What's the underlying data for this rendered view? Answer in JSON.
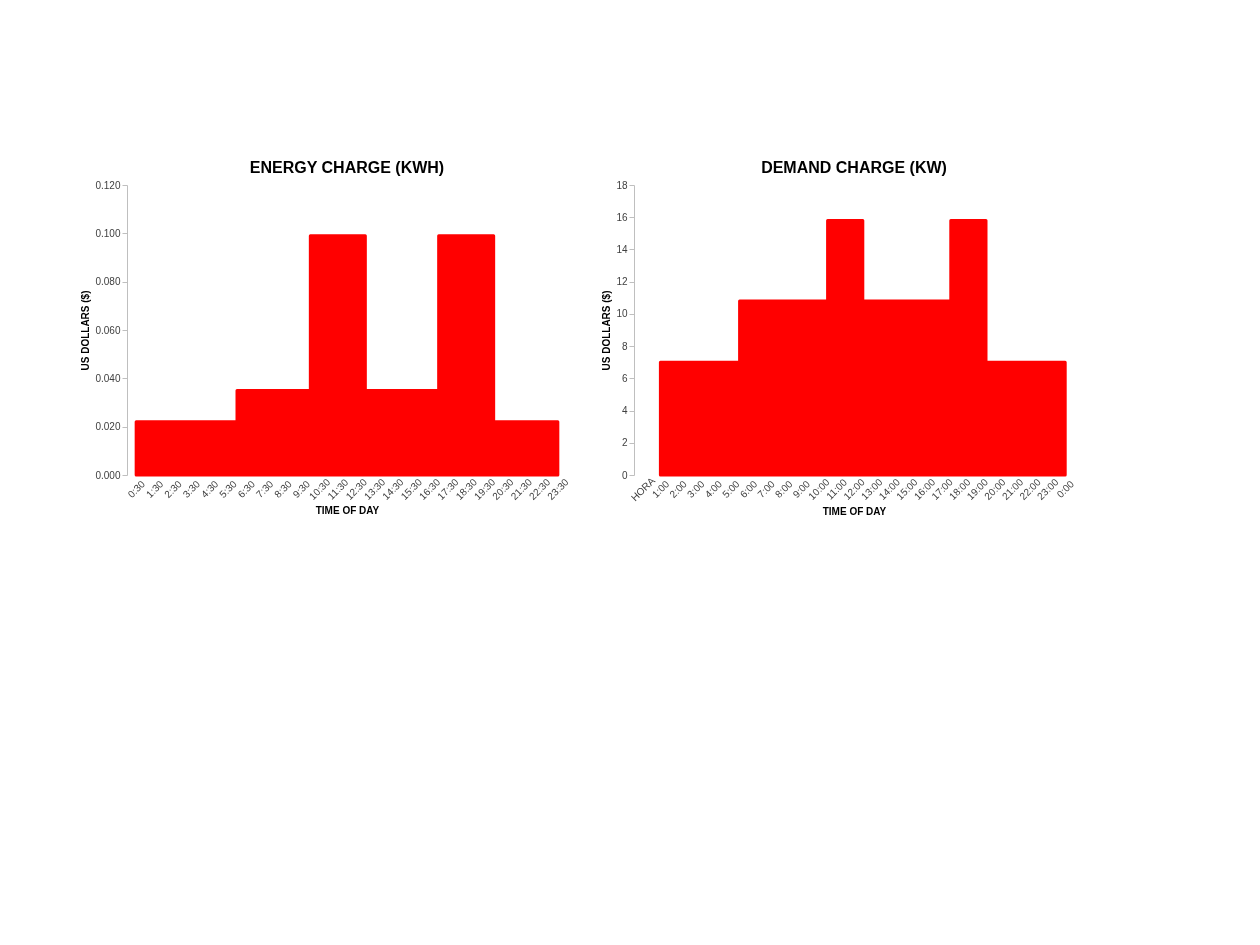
{
  "chart_data": [
    {
      "type": "area",
      "title": "ENERGY CHARGE (KWH)",
      "xlabel": "TIME OF DAY",
      "ylabel": "US DOLLARS ($)",
      "categories": [
        "0:30",
        "1:30",
        "2:30",
        "3:30",
        "4:30",
        "5:30",
        "6:30",
        "7:30",
        "8:30",
        "9:30",
        "10:30",
        "11:30",
        "12:30",
        "13:30",
        "14:30",
        "15:30",
        "16:30",
        "17:30",
        "18:30",
        "19:30",
        "20:30",
        "21:30",
        "22:30",
        "23:30"
      ],
      "values": [
        0.022,
        0.022,
        0.022,
        0.022,
        0.022,
        0.022,
        0.035,
        0.035,
        0.035,
        0.035,
        0.099,
        0.099,
        0.099,
        0.035,
        0.035,
        0.035,
        0.035,
        0.099,
        0.099,
        0.099,
        0.022,
        0.022,
        0.022,
        0.022
      ],
      "color": "#ff0000",
      "ylim": [
        0,
        0.12
      ],
      "yticks": [
        {
          "value": 0,
          "label": "0.000"
        },
        {
          "value": 0.02,
          "label": "0.020"
        },
        {
          "value": 0.04,
          "label": "0.040"
        },
        {
          "value": 0.06,
          "label": "0.060"
        },
        {
          "value": 0.08,
          "label": "0.080"
        },
        {
          "value": 0.1,
          "label": "0.100"
        },
        {
          "value": 0.12,
          "label": "0.120"
        }
      ],
      "grid": false
    },
    {
      "type": "area",
      "title": "DEMAND CHARGE (KW)",
      "xlabel": "TIME OF DAY",
      "ylabel": "US DOLLARS ($)",
      "categories": [
        "HORA",
        "1:00",
        "2:00",
        "3:00",
        "4:00",
        "5:00",
        "6:00",
        "7:00",
        "8:00",
        "9:00",
        "10:00",
        "11:00",
        "12:00",
        "13:00",
        "14:00",
        "15:00",
        "16:00",
        "17:00",
        "18:00",
        "19:00",
        "20:00",
        "21:00",
        "22:00",
        "23:00",
        "0:00"
      ],
      "values": [
        null,
        7.0,
        7.0,
        7.0,
        7.0,
        7.0,
        10.8,
        10.8,
        10.8,
        10.8,
        10.8,
        15.8,
        15.8,
        10.8,
        10.8,
        10.8,
        10.8,
        10.8,
        15.8,
        15.8,
        7.0,
        7.0,
        7.0,
        7.0,
        7.0
      ],
      "color": "#ff0000",
      "ylim": [
        0,
        18
      ],
      "yticks": [
        0,
        2,
        4,
        6,
        8,
        10,
        12,
        14,
        16,
        18
      ],
      "grid": false
    }
  ]
}
